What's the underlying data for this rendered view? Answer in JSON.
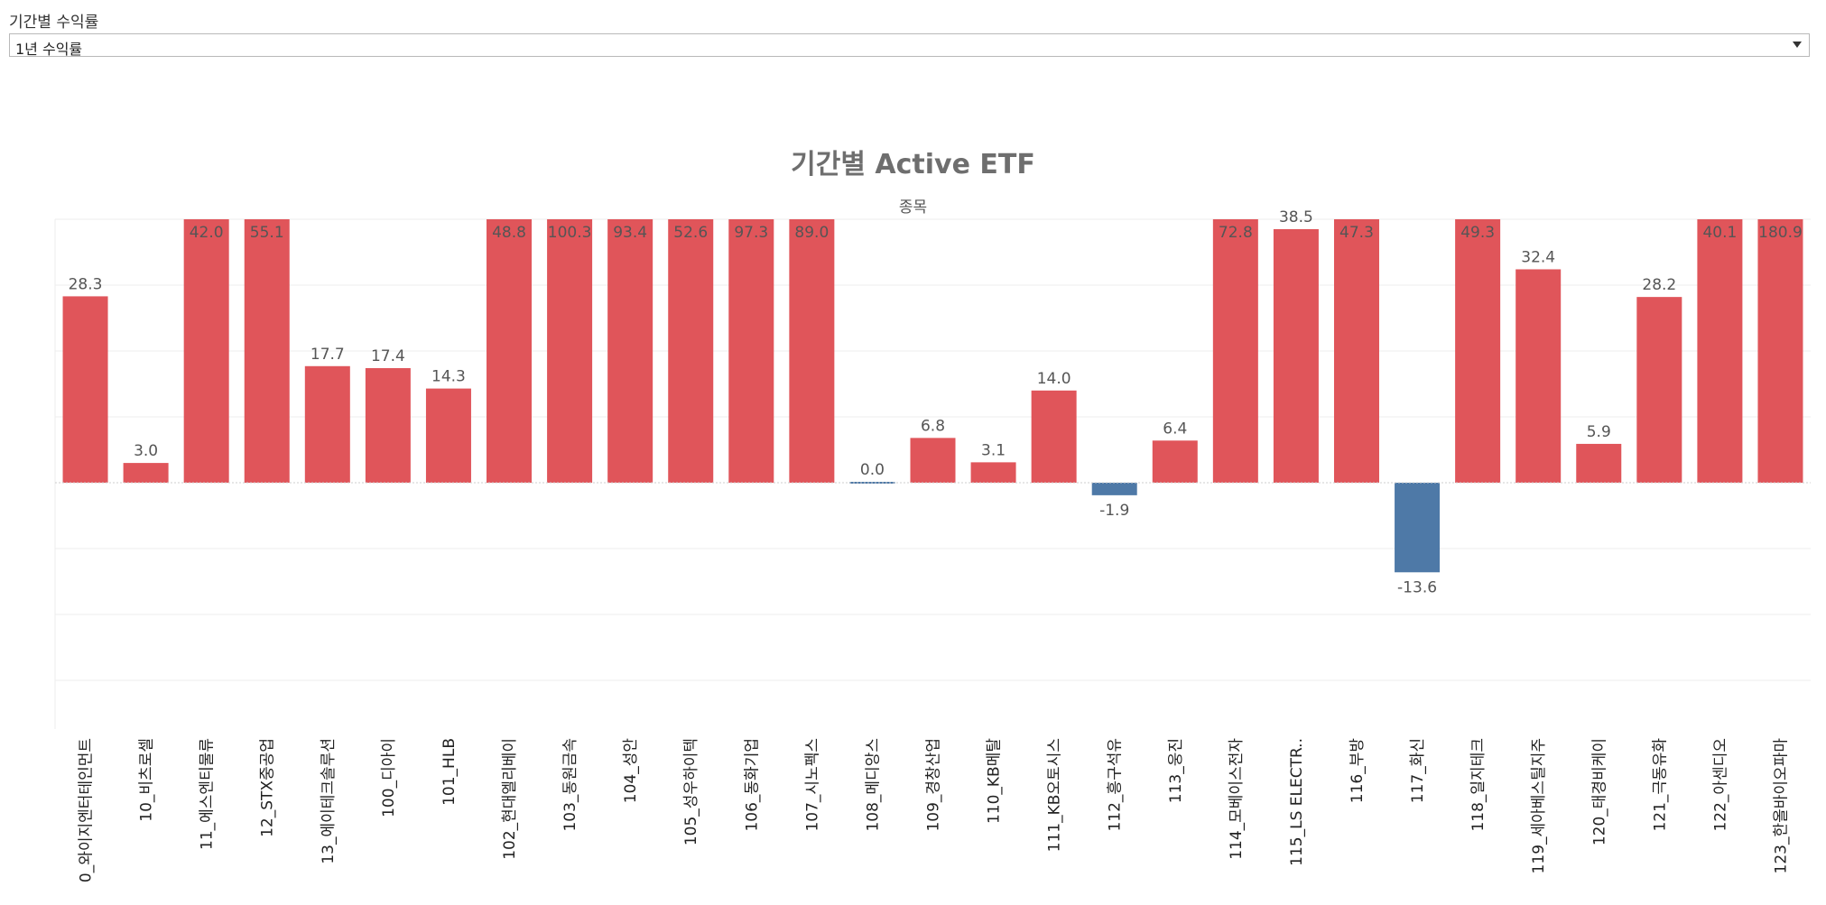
{
  "filter": {
    "label": "기간별 수익률",
    "selected": "1년 수익률"
  },
  "colors": {
    "positive": "#e0555a",
    "negative": "#4e79a7"
  },
  "chart_data": {
    "type": "bar",
    "title": "기간별 Active ETF",
    "subtitle": "종목",
    "categories": [
      "0_와이지엔터테인먼트",
      "10_비츠로셀",
      "11_에스엔티물류",
      "12_STX중공업",
      "13_에이테크솔루션",
      "100_디아이",
      "101_HLB",
      "102_현대엘리베이",
      "103_동원금속",
      "104_성안",
      "105_성우하이텍",
      "106_동화기업",
      "107_시노펙스",
      "108_메디앙스",
      "109_경창산업",
      "110_KB메탈",
      "111_KB오토시스",
      "112_흥구석유",
      "113_웅진",
      "114_모베이스전자",
      "115_LS ELECTR..",
      "116_부방",
      "117_화신",
      "118_일지테크",
      "119_세아베스틸지주",
      "120_태경비케이",
      "121_극동유화",
      "122_아센디오",
      "123_한올바이오파마"
    ],
    "values": [
      28.3,
      3.0,
      42.0,
      55.1,
      17.7,
      17.4,
      14.3,
      48.8,
      100.3,
      93.4,
      52.6,
      97.3,
      89.0,
      0.0,
      6.8,
      3.1,
      14.0,
      -1.9,
      6.4,
      72.8,
      38.5,
      47.3,
      -13.6,
      49.3,
      32.4,
      5.9,
      28.2,
      40.1,
      180.9
    ],
    "value_labels": [
      "28.3",
      "3.0",
      "42.0",
      "55.1",
      "17.7",
      "17.4",
      "14.3",
      "48.8",
      "100.3",
      "93.4",
      "52.6",
      "97.3",
      "89.0",
      "0.0",
      "6.8",
      "3.1",
      "14.0",
      "-1.9",
      "6.4",
      "72.8",
      "38.5",
      "47.3",
      "-13.6",
      "49.3",
      "32.4",
      "5.9",
      "28.2",
      "40.1",
      "180.9"
    ],
    "ylim": [
      -38,
      40
    ],
    "grid": true,
    "clipped_at_top": true
  }
}
